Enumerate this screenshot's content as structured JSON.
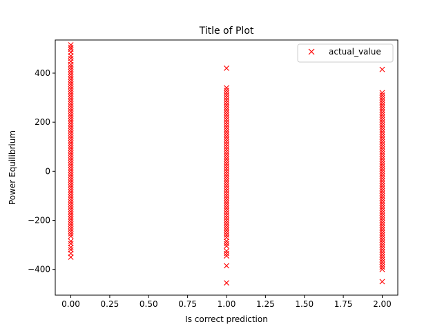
{
  "chart_data": {
    "type": "scatter",
    "title": "Title of Plot",
    "xlabel": "Is correct prediction",
    "ylabel": "Power Equilibrium",
    "xlim": [
      -0.1,
      2.1
    ],
    "ylim": [
      -505,
      535
    ],
    "xticks": [
      0.0,
      0.25,
      0.5,
      0.75,
      1.0,
      1.25,
      1.5,
      1.75,
      2.0
    ],
    "xtick_labels": [
      "0.00",
      "0.25",
      "0.50",
      "0.75",
      "1.00",
      "1.25",
      "1.50",
      "1.75",
      "2.00"
    ],
    "yticks": [
      -400,
      -200,
      0,
      200,
      400
    ],
    "ytick_labels": [
      "−400",
      "−200",
      "0",
      "200",
      "400"
    ],
    "grid": false,
    "legend": {
      "position": "top-right"
    },
    "series": [
      {
        "name": "actual_value",
        "color": "#ff0000",
        "marker": "x",
        "points": [
          [
            0,
            515
          ],
          [
            0,
            505
          ],
          [
            0,
            497
          ],
          [
            0,
            485
          ],
          [
            0,
            470
          ],
          [
            0,
            460
          ],
          [
            0,
            448
          ],
          [
            0,
            435
          ],
          [
            0,
            425
          ],
          [
            0,
            415
          ],
          [
            0,
            405
          ],
          [
            0,
            395
          ],
          [
            0,
            385
          ],
          [
            0,
            375
          ],
          [
            0,
            365
          ],
          [
            0,
            355
          ],
          [
            0,
            345
          ],
          [
            0,
            335
          ],
          [
            0,
            325
          ],
          [
            0,
            315
          ],
          [
            0,
            305
          ],
          [
            0,
            295
          ],
          [
            0,
            285
          ],
          [
            0,
            275
          ],
          [
            0,
            265
          ],
          [
            0,
            255
          ],
          [
            0,
            245
          ],
          [
            0,
            235
          ],
          [
            0,
            225
          ],
          [
            0,
            215
          ],
          [
            0,
            205
          ],
          [
            0,
            195
          ],
          [
            0,
            185
          ],
          [
            0,
            175
          ],
          [
            0,
            165
          ],
          [
            0,
            155
          ],
          [
            0,
            145
          ],
          [
            0,
            135
          ],
          [
            0,
            125
          ],
          [
            0,
            115
          ],
          [
            0,
            105
          ],
          [
            0,
            95
          ],
          [
            0,
            85
          ],
          [
            0,
            75
          ],
          [
            0,
            65
          ],
          [
            0,
            55
          ],
          [
            0,
            45
          ],
          [
            0,
            35
          ],
          [
            0,
            25
          ],
          [
            0,
            15
          ],
          [
            0,
            5
          ],
          [
            0,
            -5
          ],
          [
            0,
            -15
          ],
          [
            0,
            -25
          ],
          [
            0,
            -35
          ],
          [
            0,
            -45
          ],
          [
            0,
            -55
          ],
          [
            0,
            -65
          ],
          [
            0,
            -75
          ],
          [
            0,
            -85
          ],
          [
            0,
            -95
          ],
          [
            0,
            -105
          ],
          [
            0,
            -115
          ],
          [
            0,
            -125
          ],
          [
            0,
            -135
          ],
          [
            0,
            -145
          ],
          [
            0,
            -155
          ],
          [
            0,
            -165
          ],
          [
            0,
            -175
          ],
          [
            0,
            -185
          ],
          [
            0,
            -195
          ],
          [
            0,
            -205
          ],
          [
            0,
            -215
          ],
          [
            0,
            -225
          ],
          [
            0,
            -235
          ],
          [
            0,
            -245
          ],
          [
            0,
            -255
          ],
          [
            0,
            -265
          ],
          [
            0,
            -285
          ],
          [
            0,
            -295
          ],
          [
            0,
            -310
          ],
          [
            0,
            -320
          ],
          [
            0,
            -335
          ],
          [
            0,
            -350
          ],
          [
            1,
            420
          ],
          [
            1,
            340
          ],
          [
            1,
            330
          ],
          [
            1,
            320
          ],
          [
            1,
            310
          ],
          [
            1,
            300
          ],
          [
            1,
            290
          ],
          [
            1,
            280
          ],
          [
            1,
            270
          ],
          [
            1,
            260
          ],
          [
            1,
            250
          ],
          [
            1,
            240
          ],
          [
            1,
            230
          ],
          [
            1,
            220
          ],
          [
            1,
            210
          ],
          [
            1,
            200
          ],
          [
            1,
            190
          ],
          [
            1,
            180
          ],
          [
            1,
            170
          ],
          [
            1,
            160
          ],
          [
            1,
            150
          ],
          [
            1,
            140
          ],
          [
            1,
            130
          ],
          [
            1,
            120
          ],
          [
            1,
            110
          ],
          [
            1,
            100
          ],
          [
            1,
            90
          ],
          [
            1,
            80
          ],
          [
            1,
            70
          ],
          [
            1,
            60
          ],
          [
            1,
            50
          ],
          [
            1,
            40
          ],
          [
            1,
            30
          ],
          [
            1,
            20
          ],
          [
            1,
            10
          ],
          [
            1,
            0
          ],
          [
            1,
            -10
          ],
          [
            1,
            -20
          ],
          [
            1,
            -30
          ],
          [
            1,
            -40
          ],
          [
            1,
            -50
          ],
          [
            1,
            -60
          ],
          [
            1,
            -70
          ],
          [
            1,
            -80
          ],
          [
            1,
            -90
          ],
          [
            1,
            -100
          ],
          [
            1,
            -110
          ],
          [
            1,
            -120
          ],
          [
            1,
            -130
          ],
          [
            1,
            -140
          ],
          [
            1,
            -150
          ],
          [
            1,
            -160
          ],
          [
            1,
            -170
          ],
          [
            1,
            -180
          ],
          [
            1,
            -190
          ],
          [
            1,
            -200
          ],
          [
            1,
            -210
          ],
          [
            1,
            -220
          ],
          [
            1,
            -230
          ],
          [
            1,
            -240
          ],
          [
            1,
            -250
          ],
          [
            1,
            -260
          ],
          [
            1,
            -270
          ],
          [
            1,
            -285
          ],
          [
            1,
            -295
          ],
          [
            1,
            -305
          ],
          [
            1,
            -325
          ],
          [
            1,
            -335
          ],
          [
            1,
            -345
          ],
          [
            1,
            -385
          ],
          [
            1,
            -455
          ],
          [
            2,
            415
          ],
          [
            2,
            320
          ],
          [
            2,
            310
          ],
          [
            2,
            300
          ],
          [
            2,
            290
          ],
          [
            2,
            280
          ],
          [
            2,
            270
          ],
          [
            2,
            260
          ],
          [
            2,
            250
          ],
          [
            2,
            240
          ],
          [
            2,
            230
          ],
          [
            2,
            220
          ],
          [
            2,
            210
          ],
          [
            2,
            200
          ],
          [
            2,
            190
          ],
          [
            2,
            180
          ],
          [
            2,
            170
          ],
          [
            2,
            160
          ],
          [
            2,
            150
          ],
          [
            2,
            140
          ],
          [
            2,
            130
          ],
          [
            2,
            120
          ],
          [
            2,
            110
          ],
          [
            2,
            100
          ],
          [
            2,
            90
          ],
          [
            2,
            80
          ],
          [
            2,
            70
          ],
          [
            2,
            60
          ],
          [
            2,
            50
          ],
          [
            2,
            40
          ],
          [
            2,
            30
          ],
          [
            2,
            20
          ],
          [
            2,
            10
          ],
          [
            2,
            0
          ],
          [
            2,
            -10
          ],
          [
            2,
            -20
          ],
          [
            2,
            -30
          ],
          [
            2,
            -40
          ],
          [
            2,
            -50
          ],
          [
            2,
            -60
          ],
          [
            2,
            -70
          ],
          [
            2,
            -80
          ],
          [
            2,
            -90
          ],
          [
            2,
            -100
          ],
          [
            2,
            -110
          ],
          [
            2,
            -120
          ],
          [
            2,
            -130
          ],
          [
            2,
            -140
          ],
          [
            2,
            -150
          ],
          [
            2,
            -160
          ],
          [
            2,
            -170
          ],
          [
            2,
            -180
          ],
          [
            2,
            -190
          ],
          [
            2,
            -200
          ],
          [
            2,
            -210
          ],
          [
            2,
            -220
          ],
          [
            2,
            -230
          ],
          [
            2,
            -240
          ],
          [
            2,
            -250
          ],
          [
            2,
            -260
          ],
          [
            2,
            -270
          ],
          [
            2,
            -280
          ],
          [
            2,
            -290
          ],
          [
            2,
            -300
          ],
          [
            2,
            -310
          ],
          [
            2,
            -320
          ],
          [
            2,
            -330
          ],
          [
            2,
            -340
          ],
          [
            2,
            -350
          ],
          [
            2,
            -360
          ],
          [
            2,
            -370
          ],
          [
            2,
            -380
          ],
          [
            2,
            -390
          ],
          [
            2,
            -400
          ],
          [
            2,
            -450
          ]
        ]
      }
    ]
  }
}
